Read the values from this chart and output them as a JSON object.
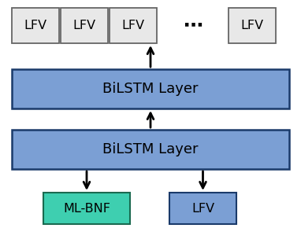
{
  "bg_color": "#ffffff",
  "bilstm_color": "#7b9fd4",
  "bilstm_border_color": "#1a3a6a",
  "lfv_box_color": "#e8e8e8",
  "lfv_box_border_color": "#666666",
  "lfv_bottom_color": "#7b9fd4",
  "lfv_bottom_border_color": "#1a3a6a",
  "mlbnf_color": "#3ecfb0",
  "mlbnf_border_color": "#1a6a50",
  "bilstm_label": "BiLSTM Layer",
  "bilstm2_label": "BiLSTM Layer",
  "mlbnf_label": "ML-BNF",
  "lfv_bottom_label": "LFV",
  "arrow_color": "#000000",
  "text_color": "#000000",
  "font_size": 11.5
}
